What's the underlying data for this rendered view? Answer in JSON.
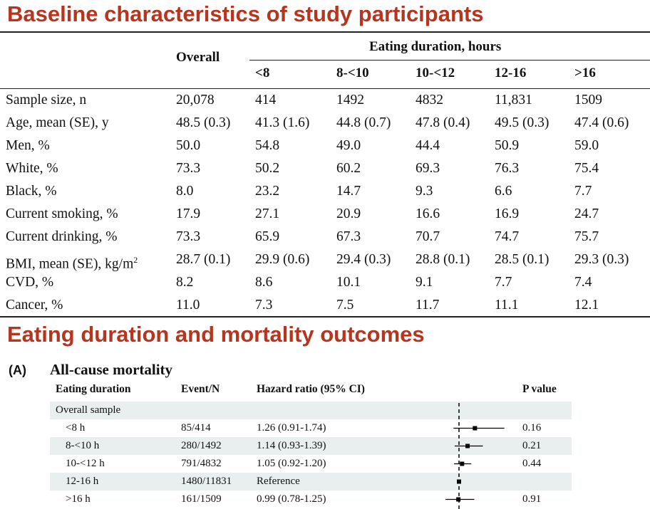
{
  "slide": {
    "title1": "Baseline characteristics of study participants",
    "title2": "Eating duration and mortality outcomes"
  },
  "baseline_table": {
    "overall_header": "Overall",
    "group_header": "Eating duration, hours",
    "columns": [
      "<8",
      "8-<10",
      "10-<12",
      "12-16",
      ">16"
    ],
    "rows": [
      {
        "label": "Sample size, n",
        "values": [
          "20,078",
          "414",
          "1492",
          "4832",
          "11,831",
          "1509"
        ]
      },
      {
        "label": "Age, mean (SE), y",
        "values": [
          "48.5 (0.3)",
          "41.3 (1.6)",
          "44.8 (0.7)",
          "47.8 (0.4)",
          "49.5 (0.3)",
          "47.4 (0.6)"
        ]
      },
      {
        "label": "Men, %",
        "values": [
          "50.0",
          "54.8",
          "49.0",
          "44.4",
          "50.9",
          "59.0"
        ]
      },
      {
        "label": "White, %",
        "values": [
          "73.3",
          "50.2",
          "60.2",
          "69.3",
          "76.3",
          "75.4"
        ]
      },
      {
        "label": "Black, %",
        "values": [
          "8.0",
          "23.2",
          "14.7",
          "9.3",
          "6.6",
          "7.7"
        ]
      },
      {
        "label": "Current smoking, %",
        "values": [
          "17.9",
          "27.1",
          "20.9",
          "16.6",
          "16.9",
          "24.7"
        ]
      },
      {
        "label": "Current drinking, %",
        "values": [
          "73.3",
          "65.9",
          "67.3",
          "70.7",
          "74.7",
          "75.7"
        ]
      },
      {
        "label": "BMI, mean (SE), kg/m",
        "sup": "2",
        "values": [
          "28.7 (0.1)",
          "29.9 (0.6)",
          "29.4 (0.3)",
          "28.8 (0.1)",
          "28.5 (0.1)",
          "29.3 (0.3)"
        ]
      },
      {
        "label": "CVD, %",
        "values": [
          "8.2",
          "8.6",
          "10.1",
          "9.1",
          "7.7",
          "7.4"
        ]
      },
      {
        "label": "Cancer, %",
        "values": [
          "11.0",
          "7.3",
          "7.5",
          "11.7",
          "11.1",
          "12.1"
        ]
      }
    ]
  },
  "forest_plot": {
    "panel_label": "(A)",
    "title": "All-cause mortality",
    "headers": {
      "duration": "Eating duration",
      "events": "Event/N",
      "hr": "Hazard ratio (95% CI)",
      "p": "P value"
    },
    "group_label": "Overall sample",
    "reference_hr": 1.0,
    "rows": [
      {
        "duration": "<8 h",
        "events": "85/414",
        "hr_text": "1.26 (0.91-1.74)",
        "p": "0.16",
        "hr": 1.26,
        "lo": 0.91,
        "hi": 1.74
      },
      {
        "duration": "8-<10 h",
        "events": "280/1492",
        "hr_text": "1.14 (0.93-1.39)",
        "p": "0.21",
        "hr": 1.14,
        "lo": 0.93,
        "hi": 1.39
      },
      {
        "duration": "10-<12 h",
        "events": "791/4832",
        "hr_text": "1.05 (0.92-1.20)",
        "p": "0.44",
        "hr": 1.05,
        "lo": 0.92,
        "hi": 1.2
      },
      {
        "duration": "12-16 h",
        "events": "1480/11831",
        "hr_text": "Reference",
        "p": "",
        "hr": 1.0,
        "lo": 1.0,
        "hi": 1.0
      },
      {
        "duration": ">16 h",
        "events": "161/1509",
        "hr_text": "0.99 (0.78-1.25)",
        "p": "0.91",
        "hr": 0.99,
        "lo": 0.78,
        "hi": 1.25
      }
    ]
  }
}
